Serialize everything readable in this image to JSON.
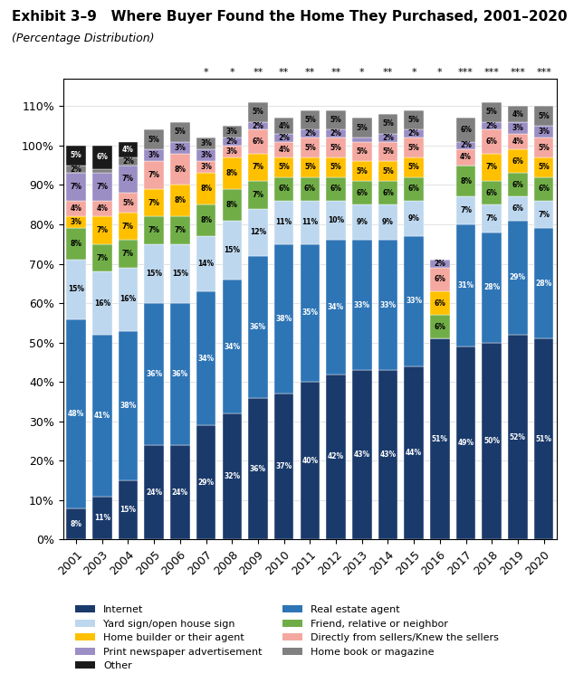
{
  "chart_data": {
    "type": "bar",
    "stacked": true,
    "title": "Exhibit 3–9   Where Buyer Found the Home They Purchased, 2001–2020",
    "subtitle": "(Percentage Distribution)",
    "categories": [
      "2001",
      "2003",
      "2004",
      "2005",
      "2006",
      "2007",
      "2008",
      "2009",
      "2010",
      "2011",
      "2012",
      "2013",
      "2014",
      "2015",
      "2016",
      "2017",
      "2018",
      "2019",
      "2020"
    ],
    "series": [
      {
        "name": "Internet",
        "color": "#1a3a6b",
        "values": [
          8,
          11,
          15,
          24,
          24,
          29,
          32,
          36,
          37,
          40,
          42,
          43,
          43,
          44,
          51,
          49,
          50,
          52,
          51
        ],
        "value_labels": [
          "8%",
          "11%",
          "15%",
          "24%",
          "24%",
          "29%",
          "32%",
          "36%",
          "37%",
          "40%",
          "42%",
          "43%",
          "43%",
          "44%",
          "51%",
          "49%",
          "50%",
          "52%",
          "51%"
        ]
      },
      {
        "name": "Real estate agent",
        "color": "#2e75b6",
        "values": [
          48,
          41,
          38,
          36,
          36,
          34,
          34,
          36,
          38,
          35,
          34,
          33,
          33,
          33,
          0,
          31,
          28,
          29,
          28
        ],
        "value_labels": [
          "48%",
          "41%",
          "38%",
          "36%",
          "36%",
          "34%",
          "34%",
          "36%",
          "38%",
          "35%",
          "34%",
          "33%",
          "33%",
          "33%",
          null,
          "31%",
          "28%",
          "29%",
          "28%"
        ]
      },
      {
        "name": "Yard sign/open house sign",
        "color": "#bdd7ee",
        "values": [
          15,
          16,
          16,
          15,
          15,
          14,
          15,
          12,
          11,
          11,
          10,
          9,
          9,
          9,
          0,
          7,
          7,
          6,
          7
        ],
        "value_labels": [
          "15%",
          "16%",
          "16%",
          "15%",
          "15%",
          "14%",
          "15%",
          "12%",
          "11%",
          "11%",
          "10%",
          "9%",
          "9%",
          "9%",
          null,
          "7%",
          "7%",
          "6%",
          "7%"
        ]
      },
      {
        "name": "Friend, relative or neighbor",
        "color": "#70ad47",
        "values": [
          8,
          7,
          7,
          7,
          7,
          8,
          8,
          7,
          6,
          6,
          6,
          6,
          6,
          6,
          6,
          8,
          6,
          6,
          6
        ],
        "value_labels": [
          "8%",
          "7%",
          "7%",
          "7%",
          "7%",
          "8%",
          "8%",
          "7%",
          "6%",
          "6%",
          "6%",
          "6%",
          "6%",
          "6%",
          "6%",
          "8%",
          "6%",
          "6%",
          "6%"
        ]
      },
      {
        "name": "Home builder or their agent",
        "color": "#ffc000",
        "values": [
          3,
          7,
          7,
          7,
          8,
          8,
          8,
          7,
          5,
          5,
          5,
          5,
          5,
          5,
          6,
          0,
          7,
          6,
          5
        ],
        "value_labels": [
          "3%",
          "7%",
          "7%",
          "7%",
          "8%",
          "8%",
          "8%",
          "7%",
          "5%",
          "5%",
          "5%",
          "5%",
          "5%",
          "5%",
          "6%",
          null,
          "7%",
          "6%",
          "5%"
        ]
      },
      {
        "name": "Directly from sellers/Knew the sellers",
        "color": "#f4a8a0",
        "values": [
          4,
          4,
          5,
          7,
          8,
          3,
          3,
          6,
          4,
          5,
          5,
          5,
          5,
          5,
          6,
          4,
          6,
          4,
          5
        ],
        "value_labels": [
          "4%",
          "4%",
          "5%",
          "7%",
          "8%",
          "3%",
          "3%",
          "6%",
          "4%",
          "5%",
          "5%",
          "5%",
          "5%",
          "5%",
          "6%",
          "4%",
          "6%",
          "4%",
          "5%"
        ]
      },
      {
        "name": "Print newspaper advertisement",
        "color": "#9b8ec4",
        "values": [
          7,
          7,
          7,
          3,
          3,
          3,
          2,
          2,
          2,
          2,
          2,
          1,
          2,
          2,
          2,
          2,
          2,
          3,
          3
        ],
        "value_labels": [
          "7%",
          "7%",
          "7%",
          "3%",
          "3%",
          "3%",
          "2%",
          "2%",
          "2%",
          "2%",
          "2%",
          null,
          "2%",
          "2%",
          "2%",
          "2%",
          "2%",
          "3%",
          "3%"
        ]
      },
      {
        "name": "Home book or magazine",
        "color": "#808080",
        "values": [
          2,
          1,
          2,
          5,
          5,
          3,
          3,
          5,
          4,
          5,
          5,
          5,
          5,
          5,
          0,
          6,
          5,
          4,
          5
        ],
        "value_labels": [
          "2%",
          null,
          "2%",
          "5%",
          "5%",
          "3%",
          "3%",
          "5%",
          "4%",
          "5%",
          "5%",
          "5%",
          "5%",
          "5%",
          null,
          "6%",
          "5%",
          "4%",
          "5%"
        ]
      },
      {
        "name": "Other",
        "color": "#1a1a1a",
        "values": [
          5,
          6,
          4,
          0,
          0,
          0,
          0,
          0,
          0,
          0,
          0,
          0,
          0,
          0,
          0,
          0,
          0,
          0,
          0
        ],
        "value_labels": [
          "5%",
          "6%",
          "4%",
          null,
          null,
          null,
          null,
          null,
          null,
          null,
          null,
          null,
          null,
          null,
          null,
          null,
          null,
          null,
          null
        ]
      }
    ],
    "ylim": [
      0,
      117
    ],
    "yticks": [
      {
        "value": 0,
        "label": "0%"
      },
      {
        "value": 10,
        "label": "10%"
      },
      {
        "value": 20,
        "label": "20%"
      },
      {
        "value": 30,
        "label": "30%"
      },
      {
        "value": 40,
        "label": "40%"
      },
      {
        "value": 50,
        "label": "50%"
      },
      {
        "value": 60,
        "label": "60%"
      },
      {
        "value": 70,
        "label": "70%"
      },
      {
        "value": 80,
        "label": "80%"
      },
      {
        "value": 90,
        "label": "90%"
      },
      {
        "value": 100,
        "label": "100%"
      },
      {
        "value": 110,
        "label": "110%"
      }
    ],
    "grid": true,
    "legend": "lower center",
    "data_labels": true,
    "annotations": [
      {
        "category": "2007",
        "text": "*"
      },
      {
        "category": "2008",
        "text": "*"
      },
      {
        "category": "2009",
        "text": "**"
      },
      {
        "category": "2010",
        "text": "**"
      },
      {
        "category": "2011",
        "text": "**"
      },
      {
        "category": "2012",
        "text": "**"
      },
      {
        "category": "2013",
        "text": "*"
      },
      {
        "category": "2014",
        "text": "**"
      },
      {
        "category": "2015",
        "text": "*"
      },
      {
        "category": "2016",
        "text": "*"
      },
      {
        "category": "2017",
        "text": "***"
      },
      {
        "category": "2018",
        "text": "***"
      },
      {
        "category": "2019",
        "text": "***"
      },
      {
        "category": "2020",
        "text": "***"
      }
    ]
  }
}
